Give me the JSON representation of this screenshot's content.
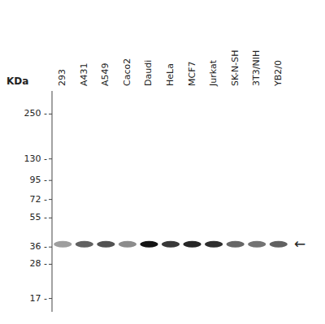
{
  "chart_data": {
    "type": "blot",
    "y_label": "KDa",
    "annotation": "←",
    "categories": [
      "293",
      "A431",
      "A549",
      "Caco2",
      "Daudi",
      "HeLa",
      "MCF7",
      "Jurkat",
      "SK-N-SH",
      "3T3/NIH",
      "YB2/0"
    ],
    "values": [
      37.5,
      37.5,
      37.5,
      37.5,
      37.5,
      37.5,
      37.5,
      37.5,
      37.5,
      37.5,
      37.5
    ],
    "intensities": [
      0.38,
      0.62,
      0.68,
      0.45,
      0.92,
      0.78,
      0.85,
      0.82,
      0.6,
      0.55,
      0.62
    ],
    "log": "y",
    "ylim": [
      14,
      350
    ],
    "yticks": [
      {
        "value": 250,
        "label": "250 -"
      },
      {
        "value": 130,
        "label": "130 -"
      },
      {
        "value": 95,
        "label": "95 -"
      },
      {
        "value": 72,
        "label": "72 -"
      },
      {
        "value": 55,
        "label": "55 -"
      },
      {
        "value": 36,
        "label": "36 -"
      },
      {
        "value": 28,
        "label": "28 -"
      },
      {
        "value": 17,
        "label": "17 -"
      }
    ],
    "grid": false,
    "color": "#000000"
  }
}
